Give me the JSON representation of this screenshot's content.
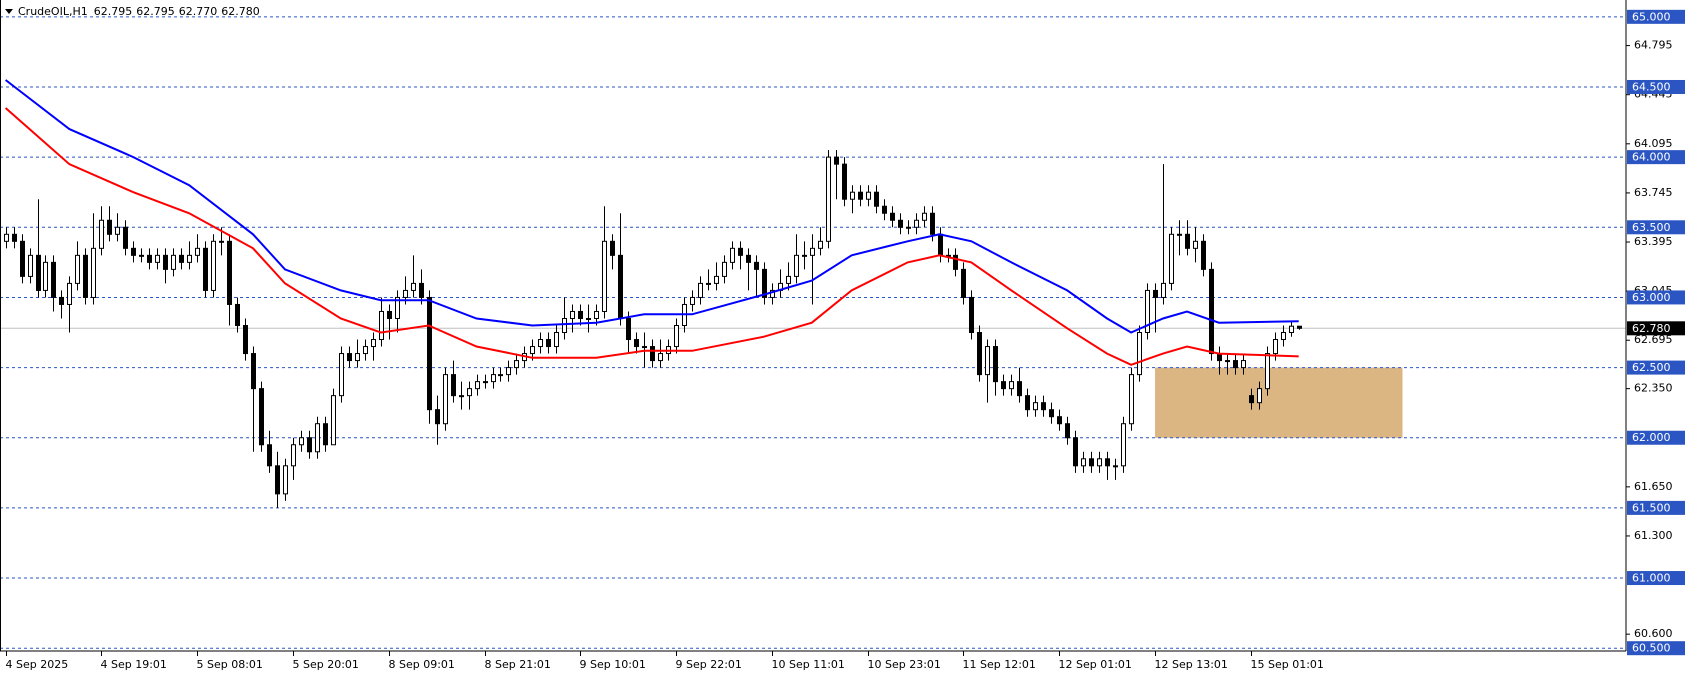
{
  "chart_data": {
    "type": "candlestick",
    "header": "CrudeOIL,H1",
    "header_labels": [
      "62.795",
      "62.795",
      "62.770",
      "62.780"
    ],
    "ohlc": [
      [
        63.4,
        63.5,
        63.35,
        63.45
      ],
      [
        63.45,
        63.5,
        63.35,
        63.4
      ],
      [
        63.4,
        63.45,
        63.1,
        63.15
      ],
      [
        63.15,
        63.35,
        63.1,
        63.3
      ],
      [
        63.3,
        63.7,
        63.0,
        63.05
      ],
      [
        63.05,
        63.3,
        63.0,
        63.25
      ],
      [
        63.25,
        63.3,
        62.9,
        63.0
      ],
      [
        63.0,
        63.05,
        62.85,
        62.95
      ],
      [
        62.95,
        63.15,
        62.75,
        63.1
      ],
      [
        63.1,
        63.4,
        63.05,
        63.3
      ],
      [
        63.3,
        63.35,
        62.95,
        63.0
      ],
      [
        63.0,
        63.6,
        62.95,
        63.35
      ],
      [
        63.35,
        63.65,
        63.3,
        63.55
      ],
      [
        63.55,
        63.65,
        63.4,
        63.45
      ],
      [
        63.45,
        63.6,
        63.4,
        63.5
      ],
      [
        63.5,
        63.55,
        63.3,
        63.35
      ],
      [
        63.35,
        63.4,
        63.25,
        63.3
      ],
      [
        63.3,
        63.35,
        63.25,
        63.3
      ],
      [
        63.3,
        63.35,
        63.2,
        63.25
      ],
      [
        63.25,
        63.35,
        63.2,
        63.3
      ],
      [
        63.3,
        63.35,
        63.1,
        63.2
      ],
      [
        63.2,
        63.35,
        63.15,
        63.3
      ],
      [
        63.3,
        63.35,
        63.2,
        63.25
      ],
      [
        63.25,
        63.4,
        63.2,
        63.3
      ],
      [
        63.3,
        63.45,
        63.25,
        63.35
      ],
      [
        63.35,
        63.4,
        63.0,
        63.05
      ],
      [
        63.05,
        63.45,
        63.0,
        63.4
      ],
      [
        63.4,
        63.5,
        63.3,
        63.4
      ],
      [
        63.4,
        63.45,
        62.8,
        62.95
      ],
      [
        62.95,
        63.0,
        62.75,
        62.8
      ],
      [
        62.8,
        62.85,
        62.55,
        62.6
      ],
      [
        62.6,
        62.65,
        61.9,
        62.35
      ],
      [
        62.35,
        62.4,
        61.9,
        61.95
      ],
      [
        61.95,
        62.05,
        61.75,
        61.8
      ],
      [
        61.8,
        61.9,
        61.5,
        61.6
      ],
      [
        61.6,
        61.85,
        61.55,
        61.8
      ],
      [
        61.8,
        62.0,
        61.7,
        61.95
      ],
      [
        61.95,
        62.05,
        61.9,
        62.0
      ],
      [
        62.0,
        62.05,
        61.85,
        61.9
      ],
      [
        61.9,
        62.15,
        61.85,
        62.1
      ],
      [
        62.1,
        62.15,
        61.9,
        61.95
      ],
      [
        61.95,
        62.35,
        61.95,
        62.3
      ],
      [
        62.3,
        62.65,
        62.25,
        62.6
      ],
      [
        62.6,
        62.65,
        62.5,
        62.55
      ],
      [
        62.55,
        62.7,
        62.5,
        62.6
      ],
      [
        62.6,
        62.7,
        62.55,
        62.65
      ],
      [
        62.65,
        62.75,
        62.55,
        62.7
      ],
      [
        62.7,
        63.0,
        62.65,
        62.9
      ],
      [
        62.9,
        62.95,
        62.7,
        62.85
      ],
      [
        62.85,
        63.05,
        62.75,
        63.0
      ],
      [
        63.0,
        63.15,
        62.95,
        63.05
      ],
      [
        63.05,
        63.3,
        63.0,
        63.1
      ],
      [
        63.1,
        63.2,
        62.95,
        63.0
      ],
      [
        63.0,
        63.05,
        62.1,
        62.2
      ],
      [
        62.2,
        62.3,
        61.95,
        62.1
      ],
      [
        62.1,
        62.5,
        62.05,
        62.45
      ],
      [
        62.45,
        62.55,
        62.25,
        62.3
      ],
      [
        62.3,
        62.4,
        62.2,
        62.3
      ],
      [
        62.3,
        62.4,
        62.2,
        62.35
      ],
      [
        62.35,
        62.45,
        62.3,
        62.4
      ],
      [
        62.4,
        62.45,
        62.35,
        62.4
      ],
      [
        62.4,
        62.5,
        62.35,
        62.45
      ],
      [
        62.45,
        62.5,
        62.4,
        62.45
      ],
      [
        62.45,
        62.55,
        62.4,
        62.5
      ],
      [
        62.5,
        62.6,
        62.45,
        62.55
      ],
      [
        62.55,
        62.65,
        62.5,
        62.6
      ],
      [
        62.6,
        62.7,
        62.55,
        62.65
      ],
      [
        62.65,
        62.75,
        62.6,
        62.7
      ],
      [
        62.7,
        62.75,
        62.6,
        62.65
      ],
      [
        62.65,
        62.8,
        62.6,
        62.75
      ],
      [
        62.75,
        63.0,
        62.7,
        62.85
      ],
      [
        62.85,
        62.95,
        62.75,
        62.9
      ],
      [
        62.9,
        62.95,
        62.8,
        62.85
      ],
      [
        62.85,
        62.95,
        62.75,
        62.85
      ],
      [
        62.85,
        62.95,
        62.8,
        62.9
      ],
      [
        62.9,
        63.65,
        62.85,
        63.4
      ],
      [
        63.4,
        63.45,
        63.2,
        63.3
      ],
      [
        63.3,
        63.6,
        62.8,
        62.85
      ],
      [
        62.85,
        62.9,
        62.6,
        62.7
      ],
      [
        62.7,
        62.75,
        62.6,
        62.65
      ],
      [
        62.65,
        62.75,
        62.5,
        62.65
      ],
      [
        62.65,
        62.7,
        62.5,
        62.55
      ],
      [
        62.55,
        62.7,
        62.5,
        62.6
      ],
      [
        62.6,
        62.7,
        62.55,
        62.65
      ],
      [
        62.65,
        62.85,
        62.6,
        62.8
      ],
      [
        62.8,
        63.0,
        62.75,
        62.95
      ],
      [
        62.95,
        63.05,
        62.9,
        63.0
      ],
      [
        63.0,
        63.15,
        62.95,
        63.1
      ],
      [
        63.1,
        63.2,
        63.05,
        63.1
      ],
      [
        63.1,
        63.25,
        63.05,
        63.15
      ],
      [
        63.15,
        63.3,
        63.1,
        63.25
      ],
      [
        63.25,
        63.4,
        63.2,
        63.35
      ],
      [
        63.35,
        63.4,
        63.2,
        63.3
      ],
      [
        63.3,
        63.35,
        63.05,
        63.25
      ],
      [
        63.25,
        63.3,
        63.0,
        63.2
      ],
      [
        63.2,
        63.25,
        62.95,
        63.0
      ],
      [
        63.0,
        63.1,
        62.95,
        63.05
      ],
      [
        63.05,
        63.2,
        63.0,
        63.1
      ],
      [
        63.1,
        63.25,
        63.05,
        63.15
      ],
      [
        63.15,
        63.45,
        63.1,
        63.3
      ],
      [
        63.3,
        63.4,
        63.2,
        63.3
      ],
      [
        63.3,
        63.45,
        62.95,
        63.35
      ],
      [
        63.35,
        63.5,
        63.3,
        63.4
      ],
      [
        63.4,
        64.05,
        63.35,
        64.0
      ],
      [
        64.0,
        64.05,
        63.7,
        63.95
      ],
      [
        63.95,
        64.0,
        63.65,
        63.7
      ],
      [
        63.7,
        63.8,
        63.6,
        63.75
      ],
      [
        63.75,
        63.8,
        63.65,
        63.7
      ],
      [
        63.7,
        63.8,
        63.65,
        63.75
      ],
      [
        63.75,
        63.8,
        63.6,
        63.65
      ],
      [
        63.65,
        63.7,
        63.55,
        63.6
      ],
      [
        63.6,
        63.65,
        63.5,
        63.55
      ],
      [
        63.55,
        63.6,
        63.45,
        63.5
      ],
      [
        63.5,
        63.55,
        63.45,
        63.5
      ],
      [
        63.5,
        63.6,
        63.45,
        63.55
      ],
      [
        63.55,
        63.65,
        63.5,
        63.6
      ],
      [
        63.6,
        63.65,
        63.4,
        63.45
      ],
      [
        63.45,
        63.5,
        63.25,
        63.3
      ],
      [
        63.3,
        63.35,
        63.25,
        63.3
      ],
      [
        63.3,
        63.35,
        63.15,
        63.2
      ],
      [
        63.2,
        63.25,
        62.95,
        63.0
      ],
      [
        63.0,
        63.05,
        62.7,
        62.75
      ],
      [
        62.75,
        62.8,
        62.4,
        62.45
      ],
      [
        62.45,
        62.7,
        62.25,
        62.65
      ],
      [
        62.65,
        62.7,
        62.3,
        62.4
      ],
      [
        62.4,
        62.45,
        62.3,
        62.35
      ],
      [
        62.35,
        62.45,
        62.3,
        62.4
      ],
      [
        62.4,
        62.5,
        62.25,
        62.3
      ],
      [
        62.3,
        62.35,
        62.15,
        62.2
      ],
      [
        62.2,
        62.3,
        62.15,
        62.25
      ],
      [
        62.25,
        62.3,
        62.15,
        62.2
      ],
      [
        62.2,
        62.25,
        62.1,
        62.15
      ],
      [
        62.15,
        62.2,
        62.05,
        62.1
      ],
      [
        62.1,
        62.15,
        61.95,
        62.0
      ],
      [
        62.0,
        62.05,
        61.75,
        61.8
      ],
      [
        61.8,
        61.9,
        61.75,
        61.85
      ],
      [
        61.85,
        61.9,
        61.75,
        61.8
      ],
      [
        61.8,
        61.9,
        61.75,
        61.85
      ],
      [
        61.85,
        61.9,
        61.7,
        61.8
      ],
      [
        61.8,
        61.85,
        61.7,
        61.8
      ],
      [
        61.8,
        62.15,
        61.75,
        62.1
      ],
      [
        62.1,
        62.5,
        62.05,
        62.45
      ],
      [
        62.45,
        62.8,
        62.4,
        62.75
      ],
      [
        62.75,
        63.1,
        62.7,
        63.05
      ],
      [
        63.05,
        63.1,
        62.75,
        63.0
      ],
      [
        63.0,
        63.95,
        62.95,
        63.1
      ],
      [
        63.1,
        63.5,
        63.05,
        63.45
      ],
      [
        63.45,
        63.55,
        63.3,
        63.45
      ],
      [
        63.45,
        63.55,
        63.3,
        63.35
      ],
      [
        63.35,
        63.5,
        63.25,
        63.4
      ],
      [
        63.4,
        63.45,
        63.15,
        63.2
      ],
      [
        63.2,
        63.25,
        62.55,
        62.6
      ],
      [
        62.6,
        62.65,
        62.45,
        62.55
      ],
      [
        62.55,
        62.6,
        62.45,
        62.55
      ],
      [
        62.55,
        62.6,
        62.45,
        62.5
      ],
      [
        62.5,
        62.6,
        62.45,
        62.55
      ],
      [
        62.3,
        62.35,
        62.2,
        62.25
      ],
      [
        62.25,
        62.4,
        62.2,
        62.35
      ],
      [
        62.35,
        62.65,
        62.3,
        62.6
      ],
      [
        62.6,
        62.75,
        62.55,
        62.7
      ],
      [
        62.7,
        62.8,
        62.65,
        62.75
      ],
      [
        62.75,
        62.83,
        62.72,
        62.795
      ],
      [
        62.795,
        62.795,
        62.77,
        62.78
      ]
    ],
    "series": [
      {
        "color": "#0000ff",
        "x": [
          0,
          8,
          16,
          23,
          31,
          35,
          42,
          47,
          53,
          59,
          66,
          74,
          80,
          86,
          95,
          101,
          106,
          113,
          117,
          121,
          126,
          133,
          138,
          141,
          145,
          148,
          152,
          162
        ],
        "values": [
          64.55,
          64.2,
          64.0,
          63.8,
          63.45,
          63.2,
          63.05,
          62.98,
          62.98,
          62.85,
          62.8,
          62.82,
          62.88,
          62.88,
          63.02,
          63.12,
          63.3,
          63.4,
          63.45,
          63.4,
          63.25,
          63.05,
          62.85,
          62.75,
          62.85,
          62.9,
          62.82,
          62.83
        ]
      },
      {
        "color": "#ff0000",
        "x": [
          0,
          8,
          16,
          23,
          31,
          35,
          42,
          47,
          53,
          59,
          66,
          74,
          80,
          86,
          95,
          101,
          106,
          113,
          117,
          121,
          126,
          133,
          138,
          141,
          145,
          148,
          152,
          162
        ],
        "values": [
          64.35,
          63.95,
          63.75,
          63.6,
          63.35,
          63.1,
          62.85,
          62.75,
          62.8,
          62.65,
          62.57,
          62.57,
          62.62,
          62.62,
          62.72,
          62.82,
          63.05,
          63.25,
          63.3,
          63.25,
          63.05,
          62.78,
          62.6,
          62.52,
          62.6,
          62.65,
          62.6,
          62.58
        ]
      }
    ],
    "xlim": [
      -0.7,
      203
    ],
    "ylim": [
      60.48,
      65.12
    ],
    "xticks": [
      {
        "value": 0,
        "label": "4 Sep 2025"
      },
      {
        "value": 12,
        "label": "4 Sep 19:01"
      },
      {
        "value": 24,
        "label": "5 Sep 08:01"
      },
      {
        "value": 36,
        "label": "5 Sep 20:01"
      },
      {
        "value": 48,
        "label": "8 Sep 09:01"
      },
      {
        "value": 60,
        "label": "8 Sep 21:01"
      },
      {
        "value": 72,
        "label": "9 Sep 10:01"
      },
      {
        "value": 84,
        "label": "9 Sep 22:01"
      },
      {
        "value": 96,
        "label": "10 Sep 11:01"
      },
      {
        "value": 108,
        "label": "10 Sep 23:01"
      },
      {
        "value": 120,
        "label": "11 Sep 12:01"
      },
      {
        "value": 132,
        "label": "12 Sep 01:01"
      },
      {
        "value": 144,
        "label": "12 Sep 13:01"
      },
      {
        "value": 156,
        "label": "15 Sep 01:01"
      }
    ],
    "yticks": [
      64.795,
      64.445,
      64.095,
      63.745,
      63.395,
      63.045,
      62.695,
      {
        "value": 62.35,
        "label": "62.350"
      },
      {
        "value": 61.65,
        "label": "61.650"
      },
      {
        "value": 61.3,
        "label": "61.300"
      },
      {
        "value": 60.6,
        "label": "60.600"
      }
    ],
    "levels": [
      {
        "value": 65,
        "label": "65.000"
      },
      {
        "value": 64.5,
        "label": "64.500"
      },
      {
        "value": 64,
        "label": "64.000"
      },
      {
        "value": 63.5,
        "label": "63.500"
      },
      {
        "value": 63,
        "label": "63.000"
      },
      {
        "value": 62.5,
        "label": "62.500"
      },
      {
        "value": 62,
        "label": "62.000"
      },
      {
        "value": 61.5,
        "label": "61.500"
      },
      {
        "value": 61,
        "label": "61.000"
      },
      {
        "value": 60.5,
        "label": "60.500"
      }
    ],
    "level_color": "#2a55c2",
    "last_price": {
      "value": 62.78,
      "label": "62.780"
    },
    "zone": {
      "x": [
        144,
        175
      ],
      "y": [
        62.0,
        62.5
      ],
      "color": "#dbb582"
    }
  }
}
